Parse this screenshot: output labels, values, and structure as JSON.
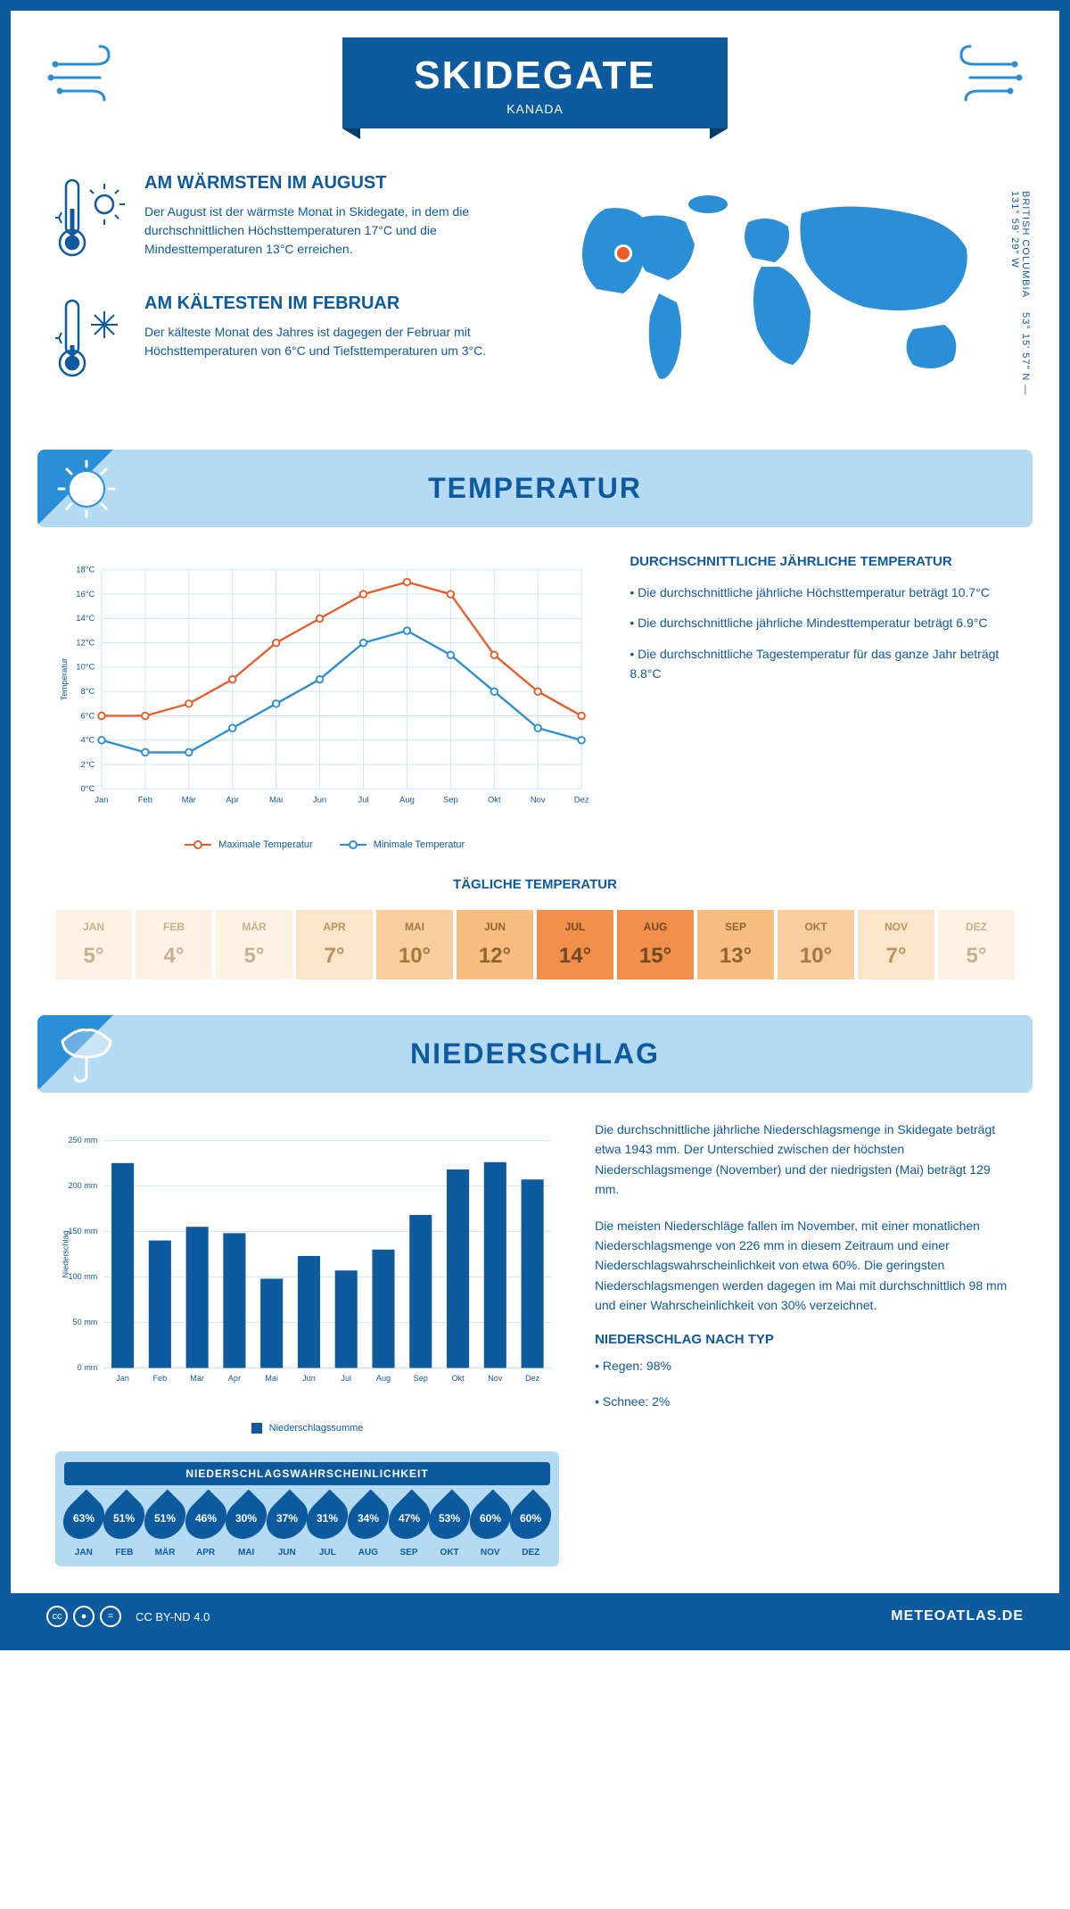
{
  "header": {
    "title": "SKIDEGATE",
    "subtitle": "KANADA"
  },
  "coords": {
    "region": "BRITISH COLUMBIA",
    "lat": "53° 15' 57\" N",
    "lon": "131° 59' 29\" W"
  },
  "intro": {
    "warm": {
      "title": "AM WÄRMSTEN IM AUGUST",
      "text": "Der August ist der wärmste Monat in Skidegate, in dem die durchschnittlichen Höchsttemperaturen 17°C und die Mindesttemperaturen 13°C erreichen."
    },
    "cold": {
      "title": "AM KÄLTESTEN IM FEBRUAR",
      "text": "Der kälteste Monat des Jahres ist dagegen der Februar mit Höchsttemperaturen von 6°C und Tiefsttemperaturen um 3°C."
    }
  },
  "sections": {
    "temperature": "TEMPERATUR",
    "precipitation": "NIEDERSCHLAG"
  },
  "tempChart": {
    "type": "line",
    "months": [
      "Jan",
      "Feb",
      "Mär",
      "Apr",
      "Mai",
      "Jun",
      "Jul",
      "Aug",
      "Sep",
      "Okt",
      "Nov",
      "Dez"
    ],
    "maxTemp": [
      6,
      6,
      7,
      9,
      12,
      14,
      16,
      17,
      16,
      11,
      8,
      6
    ],
    "minTemp": [
      4,
      3,
      3,
      5,
      7,
      9,
      12,
      13,
      11,
      8,
      5,
      4
    ],
    "yMin": 0,
    "yMax": 18,
    "yStep": 2,
    "yLabel": "Temperatur",
    "maxColor": "#f05a28",
    "minColor": "#2a8fd6",
    "gridColor": "#cfe3f5",
    "legend": {
      "max": "Maximale Temperatur",
      "min": "Minimale Temperatur"
    }
  },
  "tempInfo": {
    "title": "DURCHSCHNITTLICHE JÄHRLICHE TEMPERATUR",
    "p1": "• Die durchschnittliche jährliche Höchsttemperatur beträgt 10.7°C",
    "p2": "• Die durchschnittliche jährliche Mindesttemperatur beträgt 6.9°C",
    "p3": "• Die durchschnittliche Tagestemperatur für das ganze Jahr beträgt 8.8°C"
  },
  "dailyTemp": {
    "title": "TÄGLICHE TEMPERATUR",
    "months": [
      "JAN",
      "FEB",
      "MÄR",
      "APR",
      "MAI",
      "JUN",
      "JUL",
      "AUG",
      "SEP",
      "OKT",
      "NOV",
      "DEZ"
    ],
    "values": [
      "5°",
      "4°",
      "5°",
      "7°",
      "10°",
      "12°",
      "14°",
      "15°",
      "13°",
      "10°",
      "7°",
      "5°"
    ],
    "bgColors": [
      "#fdf2e4",
      "#fdf2e4",
      "#fdf2e4",
      "#fce5c8",
      "#f9ce9e",
      "#f8be80",
      "#f28f4b",
      "#f28f4b",
      "#f8be80",
      "#f9ce9e",
      "#fce5c8",
      "#fdf2e4"
    ],
    "textColors": [
      "#c7b090",
      "#c7b090",
      "#c7b090",
      "#b8935f",
      "#a67940",
      "#8f6430",
      "#6b4a25",
      "#6b4a25",
      "#8f6430",
      "#a67940",
      "#b8935f",
      "#c7b090"
    ]
  },
  "precipChart": {
    "type": "bar",
    "months": [
      "Jan",
      "Feb",
      "Mär",
      "Apr",
      "Mai",
      "Jun",
      "Jul",
      "Aug",
      "Sep",
      "Okt",
      "Nov",
      "Dez"
    ],
    "values": [
      225,
      140,
      155,
      148,
      98,
      123,
      107,
      130,
      168,
      218,
      226,
      207
    ],
    "yMin": 0,
    "yMax": 250,
    "yStep": 50,
    "yLabel": "Niederschlag",
    "barColor": "#0d5a9e",
    "gridColor": "#cfe3f5",
    "legend": "Niederschlagssumme"
  },
  "precipText": {
    "p1": "Die durchschnittliche jährliche Niederschlagsmenge in Skidegate beträgt etwa 1943 mm. Der Unterschied zwischen der höchsten Niederschlagsmenge (November) und der niedrigsten (Mai) beträgt 129 mm.",
    "p2": "Die meisten Niederschläge fallen im November, mit einer monatlichen Niederschlagsmenge von 226 mm in diesem Zeitraum und einer Niederschlagswahrscheinlichkeit von etwa 60%. Die geringsten Niederschlagsmengen werden dagegen im Mai mit durchschnittlich 98 mm und einer Wahrscheinlichkeit von 30% verzeichnet.",
    "typeTitle": "NIEDERSCHLAG NACH TYP",
    "type1": "• Regen: 98%",
    "type2": "• Schnee: 2%"
  },
  "precipProb": {
    "title": "NIEDERSCHLAGSWAHRSCHEINLICHKEIT",
    "months": [
      "JAN",
      "FEB",
      "MÄR",
      "APR",
      "MAI",
      "JUN",
      "JUL",
      "AUG",
      "SEP",
      "OKT",
      "NOV",
      "DEZ"
    ],
    "values": [
      "63%",
      "51%",
      "51%",
      "46%",
      "30%",
      "37%",
      "31%",
      "34%",
      "47%",
      "53%",
      "60%",
      "60%"
    ]
  },
  "footer": {
    "license": "CC BY-ND 4.0",
    "site": "METEOATLAS.DE"
  },
  "colors": {
    "primary": "#0d5a9e",
    "lightBlue": "#b4daf4",
    "midBlue": "#2a8fd6"
  }
}
